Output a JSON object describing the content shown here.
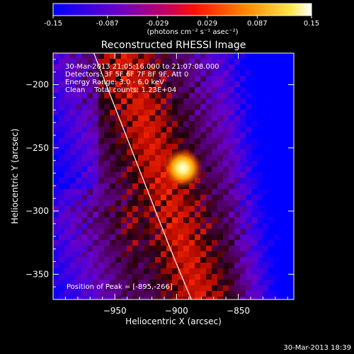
{
  "colorbar": {
    "tick_labels": [
      "-0.15",
      "-0.087",
      "-0.029",
      "0.029",
      "0.087",
      "0.15"
    ],
    "tick_values": [
      -0.15,
      -0.087,
      -0.029,
      0.029,
      0.087,
      0.15
    ],
    "range": [
      -0.15,
      0.15
    ],
    "units_label": "(photons cm⁻² s⁻¹ asec⁻²)",
    "colormap": "blue-purple-red-yellow-white"
  },
  "plot": {
    "title": "Reconstructed RHESSI Image",
    "xlabel": "Heliocentric X (arcsec)",
    "ylabel": "Heliocentric Y (arcsec)",
    "info_lines": [
      "30-Mar-2013 21:05:16.000 to 21:07:08.000",
      "Detectors: 3F 5F 6F 7F 8F 9F, Att 0",
      "Energy Range: 3.0 - 6.0 keV",
      "Clean    Total counts: 1.23E+04"
    ],
    "peak_label": "Position of Peak = [-895,-266]"
  },
  "chart_data": {
    "type": "heatmap",
    "title": "Reconstructed RHESSI Image",
    "xlabel": "Heliocentric X (arcsec)",
    "ylabel": "Heliocentric Y (arcsec)",
    "xlim": [
      -1000,
      -805
    ],
    "ylim": [
      -370,
      -175
    ],
    "xticks": [
      -950,
      -900,
      -850
    ],
    "xtick_labels": [
      "−950",
      "−900",
      "−850"
    ],
    "yticks": [
      -350,
      -300,
      -250,
      -200
    ],
    "ytick_labels": [
      "−350",
      "−300",
      "−250",
      "−200"
    ],
    "value_range": [
      -0.15,
      0.15
    ],
    "peak": {
      "x": -895,
      "y": -266
    },
    "limb_curve": [
      {
        "x": -967,
        "y": -175
      },
      {
        "x": -945,
        "y": -230
      },
      {
        "x": -925,
        "y": -280
      },
      {
        "x": -905,
        "y": -330
      },
      {
        "x": -888,
        "y": -370
      }
    ]
  },
  "footer": {
    "timestamp": "30-Mar-2013 18:39"
  }
}
